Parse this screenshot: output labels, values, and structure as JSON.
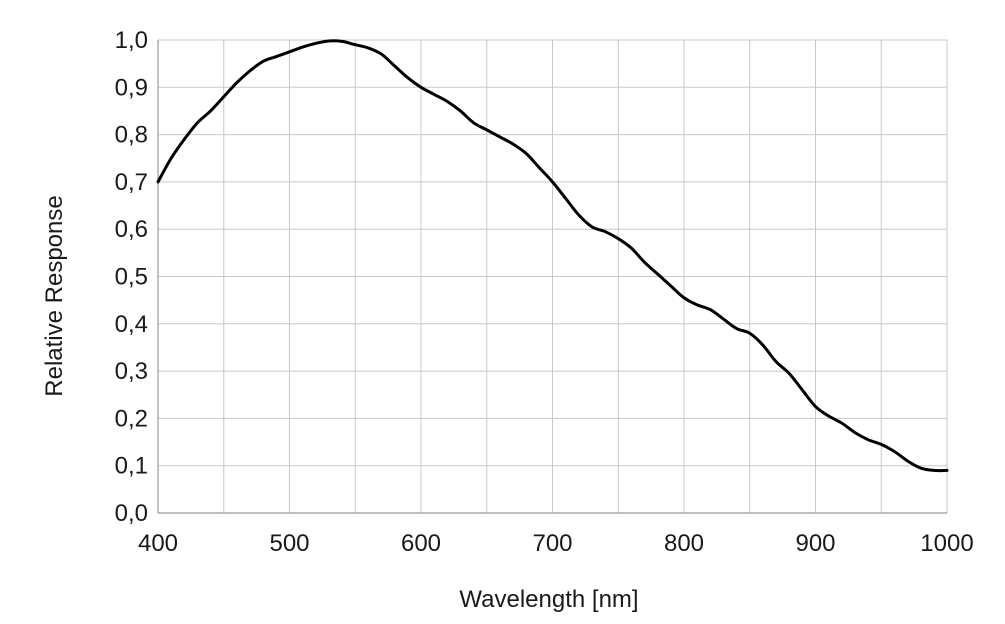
{
  "chart_data": {
    "type": "line",
    "title": "",
    "xlabel": "Wavelength [nm]",
    "ylabel": "Relative Response",
    "xlim": [
      400,
      1000
    ],
    "ylim": [
      0.0,
      1.0
    ],
    "grid": true,
    "legend": "none",
    "x_grid_step": 50,
    "y_grid_step": 0.1,
    "x_ticks": [
      {
        "value": 400,
        "label": "400"
      },
      {
        "value": 500,
        "label": "500"
      },
      {
        "value": 600,
        "label": "600"
      },
      {
        "value": 700,
        "label": "700"
      },
      {
        "value": 800,
        "label": "800"
      },
      {
        "value": 900,
        "label": "900"
      },
      {
        "value": 1000,
        "label": "1000"
      }
    ],
    "y_ticks": [
      {
        "value": 0.0,
        "label": "0,0"
      },
      {
        "value": 0.1,
        "label": "0,1"
      },
      {
        "value": 0.2,
        "label": "0,2"
      },
      {
        "value": 0.3,
        "label": "0,3"
      },
      {
        "value": 0.4,
        "label": "0,4"
      },
      {
        "value": 0.5,
        "label": "0,5"
      },
      {
        "value": 0.6,
        "label": "0,6"
      },
      {
        "value": 0.7,
        "label": "0,7"
      },
      {
        "value": 0.8,
        "label": "0,8"
      },
      {
        "value": 0.9,
        "label": "0,9"
      },
      {
        "value": 1.0,
        "label": "1,0"
      }
    ],
    "series": [
      {
        "color": "#000000",
        "x": [
          400,
          410,
          420,
          430,
          440,
          450,
          460,
          470,
          480,
          490,
          500,
          510,
          520,
          530,
          540,
          550,
          560,
          570,
          580,
          590,
          600,
          610,
          620,
          630,
          640,
          650,
          660,
          670,
          680,
          690,
          700,
          710,
          720,
          730,
          740,
          750,
          760,
          770,
          780,
          790,
          800,
          810,
          820,
          830,
          840,
          850,
          860,
          870,
          880,
          890,
          900,
          910,
          920,
          930,
          940,
          950,
          960,
          970,
          980,
          990,
          1000
        ],
        "values": [
          0.7,
          0.75,
          0.79,
          0.825,
          0.85,
          0.88,
          0.91,
          0.935,
          0.955,
          0.965,
          0.975,
          0.985,
          0.993,
          0.998,
          0.997,
          0.99,
          0.983,
          0.97,
          0.945,
          0.92,
          0.9,
          0.885,
          0.87,
          0.85,
          0.825,
          0.81,
          0.795,
          0.78,
          0.76,
          0.73,
          0.7,
          0.665,
          0.63,
          0.605,
          0.595,
          0.58,
          0.56,
          0.53,
          0.505,
          0.48,
          0.455,
          0.44,
          0.43,
          0.41,
          0.39,
          0.38,
          0.355,
          0.32,
          0.295,
          0.26,
          0.225,
          0.205,
          0.19,
          0.17,
          0.155,
          0.145,
          0.13,
          0.11,
          0.095,
          0.09,
          0.09
        ]
      }
    ]
  }
}
